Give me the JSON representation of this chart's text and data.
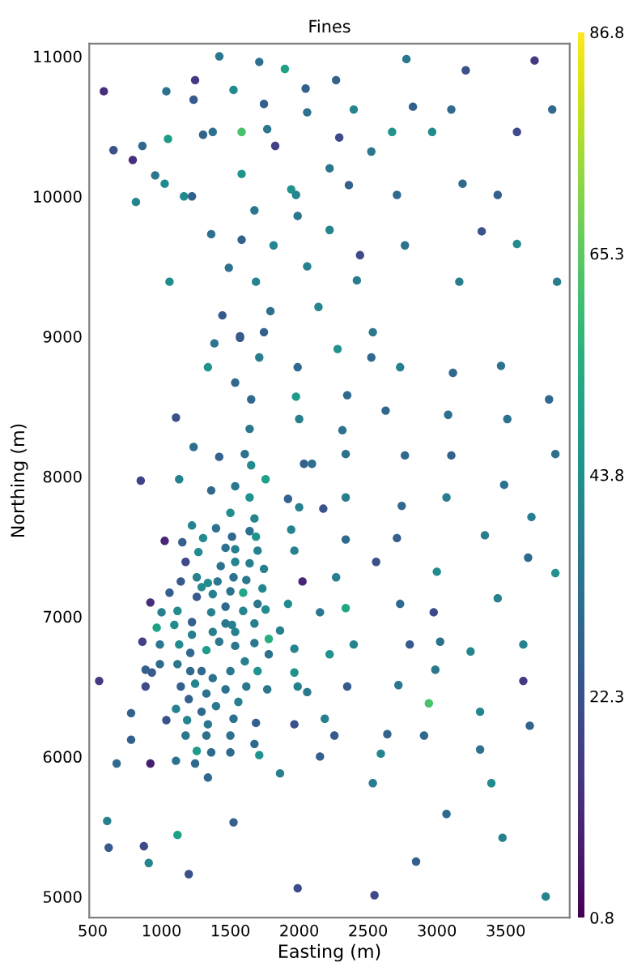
{
  "chart_data": {
    "type": "scatter",
    "title": "Fines",
    "xlabel": "Easting (m)",
    "ylabel": "Northing (m)",
    "marker": "circle",
    "xlim": [
      475,
      3965
    ],
    "ylim": [
      4850,
      11090
    ],
    "xticks": [
      500,
      1000,
      1500,
      2000,
      2500,
      3000,
      3500
    ],
    "yticks": [
      5000,
      6000,
      7000,
      8000,
      9000,
      10000,
      11000
    ],
    "clim": [
      0.8,
      86.8
    ],
    "cticks": [
      0.8,
      22.3,
      43.8,
      65.3,
      86.8
    ],
    "x": [
      1420,
      1710,
      1896,
      1244,
      581,
      1035,
      1523,
      2047,
      1233,
      1744,
      2058,
      1582,
      1768,
      1047,
      1302,
      1372,
      651,
      861,
      1826,
      791,
      1582,
      2221,
      954,
      1023,
      1942,
      1977,
      814,
      1163,
      1221,
      1675,
      1989,
      2221,
      1361,
      1582,
      1814,
      1489,
      2058,
      1058,
      1686,
      1442,
      1791,
      2140,
      1570,
      1744,
      2779,
      3210,
      3710,
      2268,
      2396,
      2826,
      3105,
      3838,
      2291,
      2675,
      2966,
      3582,
      2524,
      2361,
      3187,
      2710,
      3442,
      3326,
      2768,
      3582,
      2442,
      2419,
      3163,
      3873,
      2535,
      1384,
      1570,
      1710,
      1337,
      1989,
      1535,
      1651,
      1977,
      1105,
      2000,
      1640,
      1233,
      1605,
      1419,
      1651,
      2035,
      2093,
      849,
      1128,
      1756,
      1361,
      1535,
      1640,
      1919,
      2000,
      2175,
      1500,
      1675,
      1221,
      1396,
      1942,
      1023,
      1151,
      1302,
      1512,
      1640,
      1686,
      1268,
      1465,
      1535,
      1698,
      1965,
      1175,
      1430,
      1535,
      1640,
      1744,
      1140,
      1256,
      1337,
      1407,
      1523,
      1616,
      2024,
      1291,
      1058,
      1256,
      1372,
      1500,
      1593,
      1733,
      919,
      1465,
      1698,
      1756,
      1919,
      1000,
      1116,
      1361,
      1593,
      2151,
      965,
      1093,
      1221,
      1465,
      1512,
      1675,
      1221,
      1372,
      1535,
      1861,
      861,
      988,
      1128,
      1326,
      1419,
      1535,
      1675,
      1779,
      1965,
      2221,
      1779,
      1209,
      884,
      930,
      988,
      1116,
      1209,
      1291,
      1500,
      1605,
      1698,
      1965,
      547,
      884,
      1140,
      1244,
      1372,
      1465,
      1616,
      1768,
      1989,
      2058,
      1198,
      1326,
      1558,
      1396,
      1105,
      1291,
      779,
      1035,
      1186,
      1337,
      1523,
      1686,
      1965,
      2186,
      779,
      1175,
      1326,
      1500,
      1675,
      1256,
      1361,
      1500,
      1710,
      2151,
      674,
      919,
      1105,
      1244,
      1337,
      1861,
      605,
      1523,
      1116,
      616,
      872,
      907,
      1198,
      1989,
      2279,
      2524,
      2733,
      3117,
      3466,
      2349,
      2628,
      3082,
      3512,
      3815,
      2314,
      2338,
      2768,
      3105,
      3861,
      2338,
      2745,
      3070,
      3489,
      3687,
      2338,
      2710,
      3349,
      2559,
      3663,
      2268,
      3000,
      3861,
      2338,
      2733,
      2977,
      3442,
      2396,
      2803,
      3024,
      3245,
      3628,
      2989,
      2349,
      2721,
      2942,
      3314,
      3628,
      2256,
      2640,
      2907,
      3675,
      2593,
      3314,
      2535,
      3396,
      3070,
      3477,
      2849,
      2547,
      3791
    ],
    "values": [
      11000,
      10960,
      10910,
      10830,
      10750,
      10750,
      10760,
      10770,
      10690,
      10660,
      10600,
      10460,
      10480,
      10410,
      10440,
      10460,
      10330,
      10360,
      10360,
      10260,
      10160,
      10200,
      10150,
      10090,
      10050,
      10010,
      9960,
      10000,
      10000,
      9900,
      9860,
      9760,
      9730,
      9690,
      9650,
      9490,
      9500,
      9390,
      9390,
      9150,
      9180,
      9210,
      9000,
      9030,
      10980,
      10900,
      10970,
      10830,
      10620,
      10640,
      10620,
      10620,
      10420,
      10460,
      10460,
      10460,
      10320,
      10080,
      10090,
      10010,
      10010,
      9750,
      9650,
      9660,
      9580,
      9400,
      9390,
      9390,
      9030,
      8950,
      8990,
      8850,
      8780,
      8780,
      8670,
      8550,
      8570,
      8420,
      8410,
      8340,
      8210,
      8160,
      8140,
      8080,
      8090,
      8090,
      7970,
      7980,
      7980,
      7900,
      7930,
      7850,
      7840,
      7780,
      7770,
      7740,
      7700,
      7650,
      7630,
      7620,
      7540,
      7530,
      7560,
      7570,
      7610,
      7570,
      7460,
      7490,
      7480,
      7470,
      7470,
      7390,
      7360,
      7390,
      7380,
      7340,
      7250,
      7280,
      7240,
      7250,
      7280,
      7260,
      7250,
      7210,
      7170,
      7140,
      7160,
      7180,
      7170,
      7200,
      7100,
      7070,
      7090,
      7050,
      7090,
      7030,
      7040,
      7030,
      7040,
      7030,
      6920,
      6940,
      6960,
      6950,
      6940,
      6950,
      6870,
      6890,
      6890,
      6900,
      6820,
      6800,
      6800,
      6760,
      6820,
      6790,
      6810,
      6840,
      6770,
      6730,
      6730,
      6740,
      6620,
      6600,
      6660,
      6660,
      6610,
      6610,
      6610,
      6680,
      6610,
      6600,
      6540,
      6500,
      6500,
      6520,
      6560,
      6480,
      6500,
      6480,
      6500,
      6460,
      6410,
      6450,
      6390,
      6360,
      6340,
      6320,
      6310,
      6260,
      6260,
      6230,
      6270,
      6240,
      6230,
      6270,
      6120,
      6150,
      6150,
      6150,
      6090,
      6040,
      6030,
      6030,
      6010,
      6000,
      5950,
      5950,
      5970,
      5950,
      5850,
      5880,
      5540,
      5530,
      5440,
      5350,
      5360,
      5240,
      5160,
      5060,
      8910,
      8850,
      8780,
      8740,
      8790,
      8580,
      8470,
      8440,
      8410,
      8550,
      8330,
      8160,
      8150,
      8150,
      8160,
      7850,
      7790,
      7850,
      7940,
      7710,
      7550,
      7560,
      7580,
      7390,
      7420,
      7280,
      7320,
      7310,
      7060,
      7090,
      7030,
      7130,
      6800,
      6800,
      6820,
      6750,
      6800,
      6620,
      6500,
      6510,
      6380,
      6320,
      6540,
      6150,
      6160,
      6150,
      6220,
      6020,
      6050,
      5810,
      5810,
      5590,
      5420,
      5250,
      5010,
      5000
    ],
    "cvalues": [
      35,
      33,
      50,
      15,
      12,
      33,
      42,
      27,
      25,
      27,
      33,
      62,
      35,
      48,
      28,
      33,
      22,
      30,
      17,
      12,
      45,
      35,
      35,
      42,
      45,
      40,
      40,
      42,
      28,
      35,
      35,
      40,
      33,
      27,
      40,
      33,
      38,
      42,
      40,
      25,
      33,
      40,
      22,
      27,
      35,
      22,
      15,
      28,
      40,
      27,
      30,
      30,
      20,
      45,
      42,
      20,
      35,
      27,
      30,
      30,
      27,
      22,
      33,
      42,
      20,
      37,
      37,
      37,
      35,
      35,
      25,
      37,
      45,
      30,
      30,
      30,
      48,
      22,
      38,
      35,
      32,
      33,
      28,
      42,
      28,
      33,
      17,
      38,
      50,
      30,
      35,
      45,
      28,
      38,
      22,
      42,
      40,
      40,
      33,
      40,
      10,
      27,
      42,
      30,
      33,
      45,
      42,
      33,
      38,
      38,
      38,
      20,
      33,
      40,
      38,
      38,
      25,
      38,
      42,
      35,
      33,
      35,
      10,
      42,
      27,
      25,
      38,
      33,
      52,
      40,
      12,
      30,
      35,
      42,
      42,
      37,
      42,
      38,
      40,
      35,
      50,
      42,
      27,
      35,
      38,
      38,
      38,
      38,
      38,
      38,
      17,
      35,
      42,
      48,
      35,
      35,
      35,
      55,
      40,
      45,
      33,
      30,
      27,
      25,
      30,
      35,
      30,
      30,
      35,
      38,
      45,
      45,
      15,
      20,
      27,
      40,
      33,
      33,
      35,
      35,
      38,
      35,
      27,
      33,
      38,
      35,
      38,
      30,
      27,
      22,
      40,
      35,
      33,
      27,
      22,
      38,
      27,
      35,
      33,
      33,
      30,
      48,
      30,
      30,
      45,
      27,
      30,
      8,
      33,
      30,
      30,
      38,
      38,
      27,
      50,
      25,
      20,
      40,
      22,
      20,
      45,
      30,
      38,
      30,
      33,
      30,
      30,
      33,
      33,
      30,
      33,
      33,
      30,
      28,
      33,
      37,
      30,
      37,
      33,
      37,
      30,
      27,
      37,
      22,
      30,
      38,
      42,
      45,
      52,
      30,
      20,
      38,
      40,
      25,
      33,
      40,
      38,
      35,
      25,
      35,
      62,
      40,
      15,
      25,
      28,
      30,
      28,
      40,
      33,
      37,
      42,
      30,
      38,
      27,
      20,
      40
    ]
  }
}
